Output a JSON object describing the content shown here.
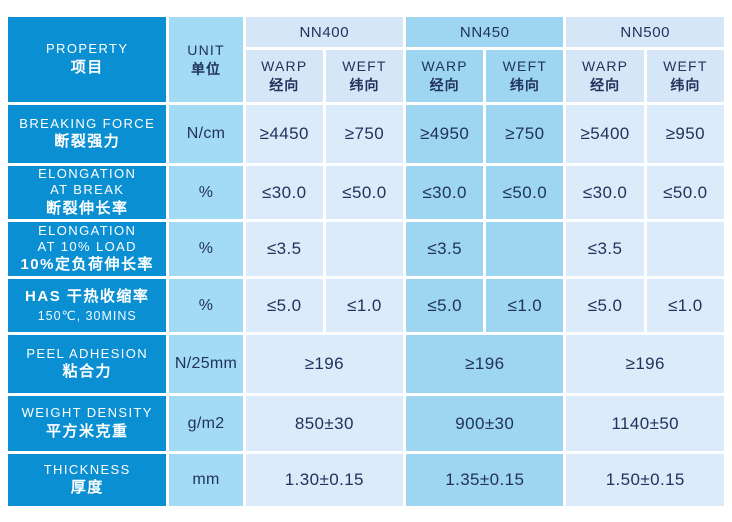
{
  "table": {
    "header": {
      "property": {
        "en": "PROPERTY",
        "zh": "项目"
      },
      "unit": {
        "en": "UNIT",
        "zh": "单位"
      },
      "groups": [
        {
          "label": "NN400",
          "highlight": false
        },
        {
          "label": "NN450",
          "highlight": true
        },
        {
          "label": "NN500",
          "highlight": false
        }
      ],
      "warp": {
        "en": "WARP",
        "zh": "经向"
      },
      "weft": {
        "en": "WEFT",
        "zh": "纬向"
      }
    },
    "rows": [
      {
        "label_lines": [
          {
            "t": "BREAKING FORCE",
            "s": "en"
          },
          {
            "t": "断裂强力",
            "s": "zh"
          }
        ],
        "unit": "N/cm",
        "merged": false,
        "values": [
          [
            "≥4450",
            "≥750"
          ],
          [
            "≥4950",
            "≥750"
          ],
          [
            "≥5400",
            "≥950"
          ]
        ]
      },
      {
        "label_lines": [
          {
            "t": "ELONGATION",
            "s": "en"
          },
          {
            "t": "AT BREAK",
            "s": "en"
          },
          {
            "t": "断裂伸长率",
            "s": "zh"
          }
        ],
        "unit": "%",
        "merged": false,
        "values": [
          [
            "≤30.0",
            "≤50.0"
          ],
          [
            "≤30.0",
            "≤50.0"
          ],
          [
            "≤30.0",
            "≤50.0"
          ]
        ]
      },
      {
        "label_lines": [
          {
            "t": "ELONGATION",
            "s": "en"
          },
          {
            "t": "AT 10% LOAD",
            "s": "en"
          },
          {
            "t": "10%定负荷伸长率",
            "s": "zh"
          }
        ],
        "unit": "%",
        "merged": false,
        "values": [
          [
            "≤3.5",
            ""
          ],
          [
            "≤3.5",
            ""
          ],
          [
            "≤3.5",
            ""
          ]
        ]
      },
      {
        "label_lines": [
          {
            "t": "HAS  干热收缩率",
            "s": "zh"
          },
          {
            "t": "150℃, 30MINS",
            "s": "sub"
          }
        ],
        "unit": "%",
        "merged": false,
        "values": [
          [
            "≤5.0",
            "≤1.0"
          ],
          [
            "≤5.0",
            "≤1.0"
          ],
          [
            "≤5.0",
            "≤1.0"
          ]
        ]
      },
      {
        "label_lines": [
          {
            "t": "PEEL ADHESION",
            "s": "en"
          },
          {
            "t": "粘合力",
            "s": "zh"
          }
        ],
        "unit": "N/25mm",
        "merged": true,
        "values": [
          "≥196",
          "≥196",
          "≥196"
        ]
      },
      {
        "label_lines": [
          {
            "t": "WEIGHT DENSITY",
            "s": "en"
          },
          {
            "t": "平方米克重",
            "s": "zh"
          }
        ],
        "unit": "g/m2",
        "merged": true,
        "values": [
          "850±30",
          "900±30",
          "1140±50"
        ]
      },
      {
        "label_lines": [
          {
            "t": "THICKNESS",
            "s": "en"
          },
          {
            "t": "厚度",
            "s": "zh"
          }
        ],
        "unit": "mm",
        "merged": true,
        "values": [
          "1.30±0.15",
          "1.35±0.15",
          "1.50±0.15"
        ]
      }
    ]
  },
  "colors": {
    "property_column_blue": "#0a8fd2",
    "unit_column_blue": "#a4dbf4",
    "highlight_column_blue": "#9ed6f2",
    "light_cell_blue": "#dcebf9",
    "text_navy": "#21325c",
    "text_white": "#ffffff"
  }
}
